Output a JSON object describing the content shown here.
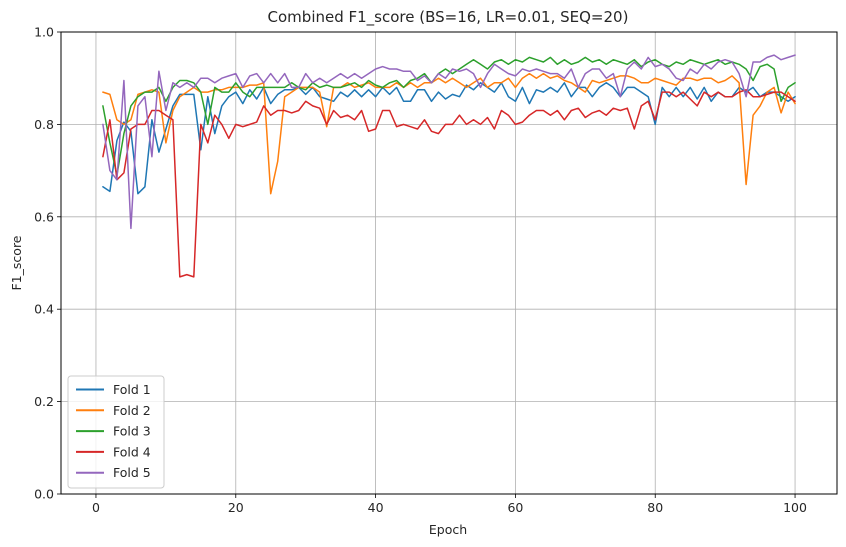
{
  "chart_data": {
    "type": "line",
    "title": "Combined F1_score (BS=16, LR=0.01, SEQ=20)",
    "xlabel": "Epoch",
    "ylabel": "F1_score",
    "xlim": [
      -5,
      106
    ],
    "ylim": [
      0.0,
      1.0
    ],
    "xticks": [
      0,
      20,
      40,
      60,
      80,
      100
    ],
    "yticks": [
      0.0,
      0.2,
      0.4,
      0.6,
      0.8,
      1.0
    ],
    "xtick_labels": [
      "0",
      "20",
      "40",
      "60",
      "80",
      "100"
    ],
    "ytick_labels": [
      "0.0",
      "0.2",
      "0.4",
      "0.6",
      "0.8",
      "1.0"
    ],
    "grid": true,
    "legend_position": "lower-left",
    "series": [
      {
        "name": "Fold 1",
        "color": "#1f77b4",
        "values": [
          0.665,
          0.655,
          0.765,
          0.805,
          0.785,
          0.65,
          0.665,
          0.81,
          0.74,
          0.79,
          0.84,
          0.865,
          0.865,
          0.865,
          0.745,
          0.86,
          0.78,
          0.84,
          0.86,
          0.87,
          0.845,
          0.875,
          0.855,
          0.88,
          0.845,
          0.865,
          0.875,
          0.875,
          0.88,
          0.865,
          0.88,
          0.86,
          0.855,
          0.85,
          0.87,
          0.86,
          0.875,
          0.86,
          0.875,
          0.86,
          0.88,
          0.865,
          0.88,
          0.85,
          0.85,
          0.875,
          0.875,
          0.85,
          0.87,
          0.855,
          0.865,
          0.86,
          0.885,
          0.875,
          0.89,
          0.88,
          0.87,
          0.89,
          0.86,
          0.85,
          0.88,
          0.845,
          0.875,
          0.87,
          0.88,
          0.87,
          0.89,
          0.86,
          0.88,
          0.88,
          0.86,
          0.88,
          0.89,
          0.88,
          0.86,
          0.88,
          0.88,
          0.87,
          0.86,
          0.8,
          0.88,
          0.86,
          0.88,
          0.86,
          0.88,
          0.855,
          0.88,
          0.85,
          0.87,
          0.86,
          0.86,
          0.88,
          0.87,
          0.88,
          0.86,
          0.87,
          0.87,
          0.86,
          0.85,
          0.86
        ]
      },
      {
        "name": "Fold 2",
        "color": "#ff7f0e",
        "values": [
          0.87,
          0.865,
          0.81,
          0.8,
          0.81,
          0.865,
          0.87,
          0.875,
          0.87,
          0.76,
          0.83,
          0.86,
          0.87,
          0.88,
          0.87,
          0.87,
          0.875,
          0.875,
          0.88,
          0.88,
          0.88,
          0.885,
          0.885,
          0.89,
          0.65,
          0.72,
          0.86,
          0.87,
          0.88,
          0.88,
          0.88,
          0.87,
          0.795,
          0.88,
          0.88,
          0.89,
          0.88,
          0.885,
          0.89,
          0.88,
          0.88,
          0.88,
          0.89,
          0.88,
          0.89,
          0.88,
          0.89,
          0.89,
          0.9,
          0.89,
          0.9,
          0.89,
          0.88,
          0.89,
          0.9,
          0.88,
          0.89,
          0.89,
          0.9,
          0.88,
          0.9,
          0.91,
          0.9,
          0.91,
          0.9,
          0.905,
          0.895,
          0.89,
          0.88,
          0.87,
          0.895,
          0.89,
          0.895,
          0.9,
          0.905,
          0.905,
          0.9,
          0.89,
          0.89,
          0.9,
          0.895,
          0.89,
          0.885,
          0.9,
          0.9,
          0.895,
          0.9,
          0.9,
          0.89,
          0.895,
          0.905,
          0.89,
          0.67,
          0.82,
          0.84,
          0.87,
          0.88,
          0.825,
          0.87,
          0.845
        ]
      },
      {
        "name": "Fold 3",
        "color": "#2ca02c",
        "values": [
          0.84,
          0.76,
          0.69,
          0.78,
          0.84,
          0.86,
          0.87,
          0.87,
          0.88,
          0.85,
          0.88,
          0.895,
          0.895,
          0.89,
          0.87,
          0.8,
          0.88,
          0.87,
          0.87,
          0.89,
          0.87,
          0.86,
          0.88,
          0.88,
          0.88,
          0.88,
          0.88,
          0.89,
          0.88,
          0.875,
          0.89,
          0.88,
          0.885,
          0.88,
          0.88,
          0.885,
          0.89,
          0.88,
          0.895,
          0.885,
          0.88,
          0.89,
          0.895,
          0.88,
          0.895,
          0.9,
          0.91,
          0.89,
          0.91,
          0.92,
          0.91,
          0.92,
          0.93,
          0.94,
          0.93,
          0.92,
          0.935,
          0.94,
          0.93,
          0.94,
          0.935,
          0.945,
          0.94,
          0.935,
          0.945,
          0.93,
          0.94,
          0.93,
          0.935,
          0.945,
          0.935,
          0.94,
          0.93,
          0.94,
          0.935,
          0.93,
          0.94,
          0.925,
          0.935,
          0.94,
          0.93,
          0.925,
          0.935,
          0.93,
          0.94,
          0.935,
          0.93,
          0.935,
          0.94,
          0.93,
          0.935,
          0.93,
          0.92,
          0.895,
          0.925,
          0.93,
          0.92,
          0.85,
          0.88,
          0.89
        ]
      },
      {
        "name": "Fold 4",
        "color": "#d62728",
        "values": [
          0.73,
          0.81,
          0.68,
          0.695,
          0.79,
          0.8,
          0.8,
          0.83,
          0.83,
          0.82,
          0.81,
          0.47,
          0.475,
          0.47,
          0.8,
          0.76,
          0.82,
          0.8,
          0.77,
          0.8,
          0.795,
          0.8,
          0.805,
          0.84,
          0.82,
          0.83,
          0.83,
          0.825,
          0.83,
          0.85,
          0.84,
          0.835,
          0.8,
          0.83,
          0.815,
          0.82,
          0.81,
          0.83,
          0.785,
          0.79,
          0.83,
          0.83,
          0.795,
          0.8,
          0.795,
          0.79,
          0.81,
          0.785,
          0.78,
          0.8,
          0.8,
          0.82,
          0.8,
          0.81,
          0.8,
          0.815,
          0.79,
          0.83,
          0.82,
          0.8,
          0.805,
          0.82,
          0.83,
          0.83,
          0.82,
          0.83,
          0.81,
          0.83,
          0.835,
          0.815,
          0.825,
          0.83,
          0.82,
          0.835,
          0.83,
          0.835,
          0.79,
          0.84,
          0.85,
          0.81,
          0.87,
          0.87,
          0.86,
          0.87,
          0.855,
          0.84,
          0.87,
          0.86,
          0.87,
          0.86,
          0.86,
          0.87,
          0.875,
          0.86,
          0.86,
          0.865,
          0.87,
          0.87,
          0.86,
          0.85
        ]
      },
      {
        "name": "Fold 5",
        "color": "#9467bd",
        "values": [
          0.8,
          0.7,
          0.68,
          0.895,
          0.575,
          0.84,
          0.86,
          0.73,
          0.915,
          0.83,
          0.89,
          0.88,
          0.89,
          0.88,
          0.9,
          0.9,
          0.89,
          0.9,
          0.905,
          0.91,
          0.88,
          0.905,
          0.91,
          0.89,
          0.91,
          0.89,
          0.91,
          0.88,
          0.88,
          0.91,
          0.89,
          0.9,
          0.89,
          0.9,
          0.91,
          0.9,
          0.91,
          0.9,
          0.91,
          0.92,
          0.925,
          0.92,
          0.92,
          0.915,
          0.915,
          0.895,
          0.905,
          0.89,
          0.91,
          0.9,
          0.92,
          0.915,
          0.92,
          0.91,
          0.88,
          0.91,
          0.93,
          0.92,
          0.91,
          0.905,
          0.92,
          0.915,
          0.92,
          0.915,
          0.91,
          0.91,
          0.9,
          0.92,
          0.88,
          0.91,
          0.92,
          0.92,
          0.9,
          0.91,
          0.86,
          0.92,
          0.935,
          0.92,
          0.945,
          0.925,
          0.93,
          0.92,
          0.9,
          0.895,
          0.92,
          0.91,
          0.93,
          0.92,
          0.935,
          0.94,
          0.935,
          0.91,
          0.86,
          0.935,
          0.935,
          0.945,
          0.95,
          0.94,
          0.945,
          0.95
        ]
      }
    ]
  }
}
